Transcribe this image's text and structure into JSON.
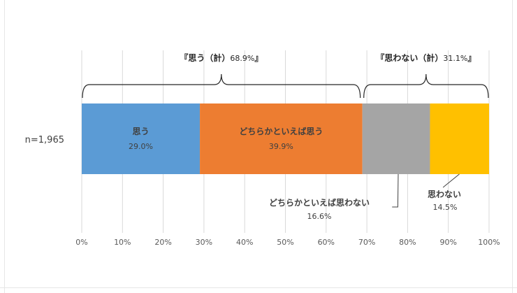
{
  "chart_data": {
    "type": "bar",
    "orientation": "horizontal-stacked-100",
    "category_label": "n=1,965",
    "series": [
      {
        "name": "思う",
        "value": 29.0,
        "value_label": "29.0%",
        "color": "#5B9BD5"
      },
      {
        "name": "どちらかといえば思う",
        "value": 39.9,
        "value_label": "39.9%",
        "color": "#ED7D31"
      },
      {
        "name": "どちらかといえば思わない",
        "value": 16.6,
        "value_label": "16.6%",
        "color": "#A5A5A5"
      },
      {
        "name": "思わない",
        "value": 14.5,
        "value_label": "14.5%",
        "color": "#FFC000"
      }
    ],
    "xlim": [
      0,
      100
    ],
    "x_ticks": [
      "0%",
      "10%",
      "20%",
      "30%",
      "40%",
      "50%",
      "60%",
      "70%",
      "80%",
      "90%",
      "100%"
    ],
    "grid": true,
    "group_annotations": [
      {
        "label": "『思う（計）",
        "value_text": "68.9%",
        "suffix": "』",
        "from": 0,
        "to": 68.9
      },
      {
        "label": "『思わない（計）",
        "value_text": "31.1%",
        "suffix": "』",
        "from": 68.9,
        "to": 100
      }
    ]
  }
}
